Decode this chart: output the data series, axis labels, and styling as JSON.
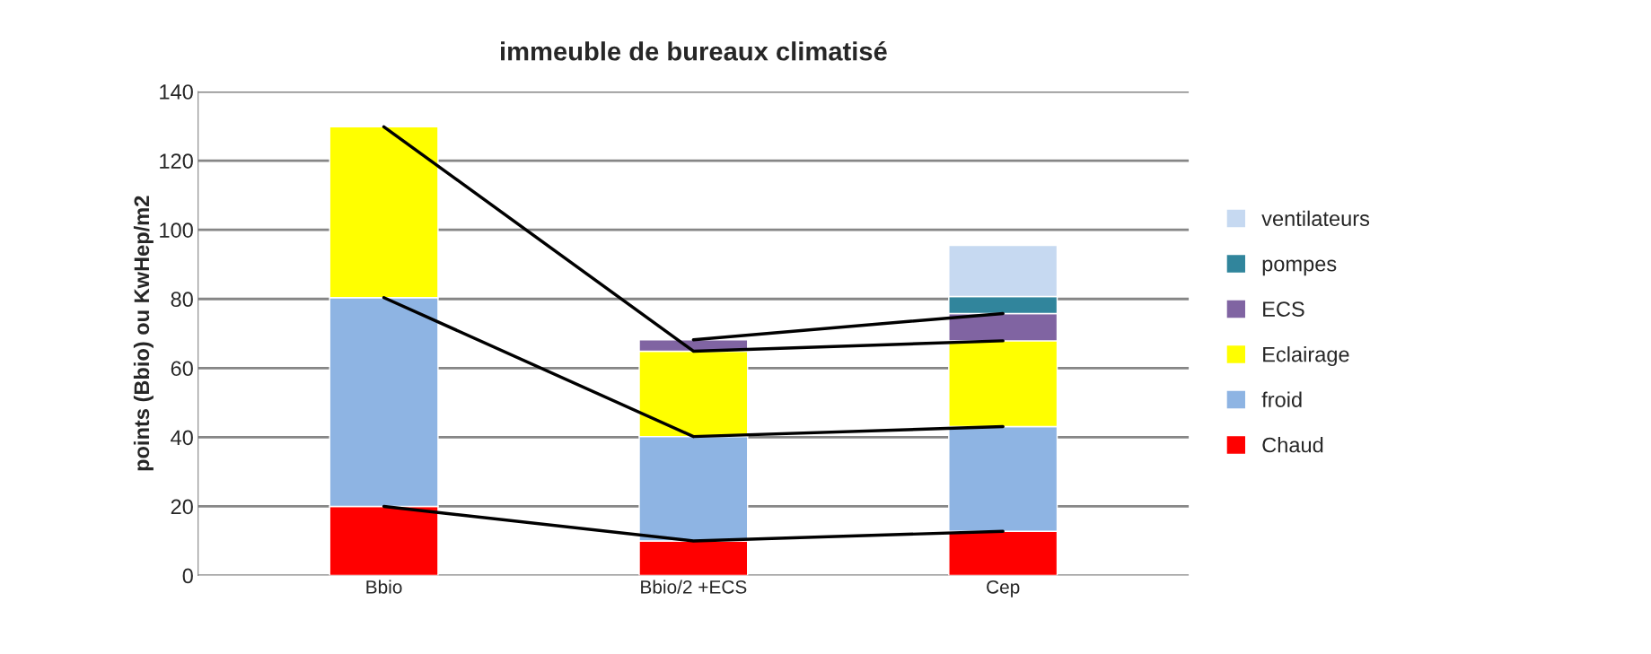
{
  "chart_data": {
    "type": "bar",
    "title": "immeuble de bureaux climatisé",
    "ylabel": "points (Bbio) ou KwHep/m2",
    "categories": [
      "Bbio",
      "Bbio/2 +ECS",
      "Cep"
    ],
    "stacked": true,
    "series": [
      {
        "name": "Chaud",
        "color": "#ff0000",
        "values": [
          20,
          10,
          12.8
        ]
      },
      {
        "name": "froid",
        "color": "#8eb4e3",
        "values": [
          60.4,
          30.2,
          30.3
        ]
      },
      {
        "name": "Eclairage",
        "color": "#ffff00",
        "values": [
          49.4,
          24.7,
          24.8
        ]
      },
      {
        "name": "ECS",
        "color": "#8064a2",
        "values": [
          null,
          3.3,
          7.9
        ]
      },
      {
        "name": "pompes",
        "color": "#31859c",
        "values": [
          null,
          null,
          4.9
        ]
      },
      {
        "name": "ventilateurs",
        "color": "#c6d9f1",
        "values": [
          null,
          null,
          14.8
        ]
      },
      {
        "type": "line",
        "color": "#000000",
        "values": [
          20,
          10,
          12.8
        ]
      },
      {
        "type": "line",
        "color": "#000000",
        "values": [
          80.4,
          40.2,
          43.1
        ]
      },
      {
        "type": "line",
        "color": "#000000",
        "values": [
          129.8,
          64.9,
          67.9
        ]
      },
      {
        "type": "line",
        "color": "#000000",
        "values": [
          null,
          68.2,
          75.8
        ]
      }
    ],
    "ylim": [
      0,
      140
    ],
    "yticks": [
      0,
      20,
      40,
      60,
      80,
      100,
      120,
      140
    ],
    "grid": "y",
    "legend": "right"
  }
}
